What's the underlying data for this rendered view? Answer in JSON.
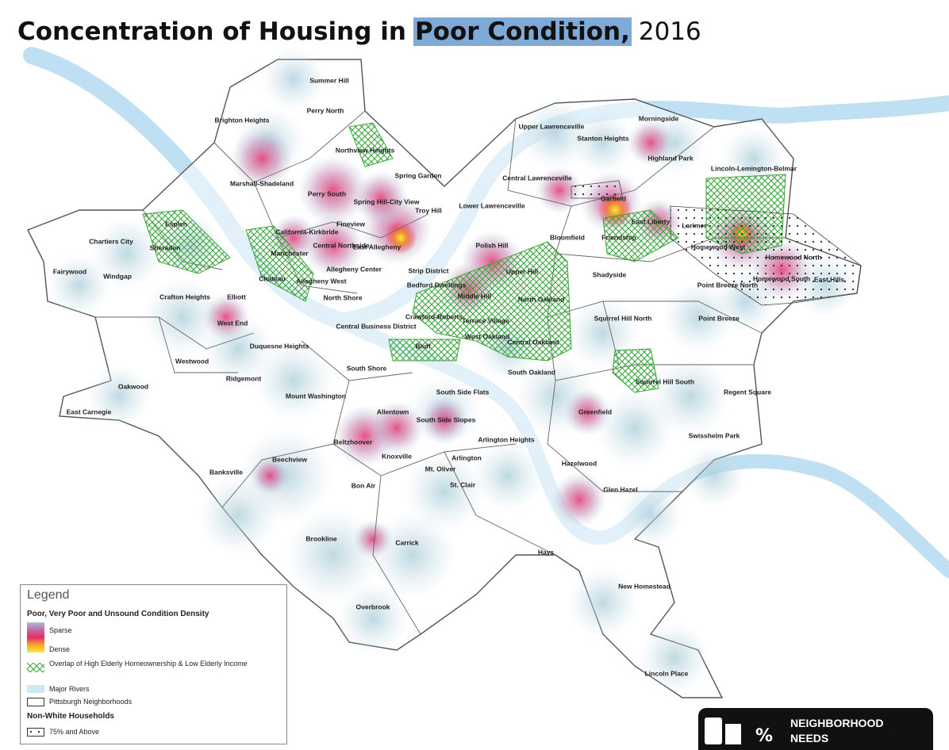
{
  "title": {
    "text": "Concentration of Housing in",
    "highlight": "Poor Condition,",
    "year": "2016"
  },
  "map": {
    "neighborhoods": [
      "Summer Hill",
      "Perry North",
      "Brighton Heights",
      "Northview Heights",
      "Spring Garden",
      "Marshall-Shadeland",
      "Perry South",
      "Spring Hill-City View",
      "Troy Hill",
      "California-Kirkbride",
      "Fineview",
      "Central Northside",
      "East Allegheny",
      "Manchester",
      "Allegheny Center",
      "Chateau",
      "Allegheny West",
      "North Shore",
      "Chartiers City",
      "Esplen",
      "Sheraden",
      "Fairywood",
      "Windgap",
      "Crafton Heights",
      "Elliott",
      "West End",
      "Duquesne Heights",
      "Westwood",
      "Ridgemont",
      "Oakwood",
      "East Carnegie",
      "Mount Washington",
      "South Shore",
      "Central Business District",
      "Strip District",
      "Bedford Dwellings",
      "Middle Hill",
      "Polish Hill",
      "Upper Hill",
      "Crawford-Roberts",
      "Terrace Village",
      "West Oakland",
      "Bluff",
      "North Oakland",
      "Central Oakland",
      "South Oakland",
      "Lower Lawrenceville",
      "Central Lawrenceville",
      "Upper Lawrenceville",
      "Stanton Heights",
      "Morningside",
      "Highland Park",
      "Lincoln-Lemington-Belmar",
      "Garfield",
      "East Liberty",
      "Bloomfield",
      "Friendship",
      "Larimer",
      "Homewood West",
      "Homewood North",
      "Homewood South",
      "East Hills",
      "Point Breeze North",
      "Shadyside",
      "Squirrel Hill North",
      "Point Breeze",
      "Squirrel Hill South",
      "Regent Square",
      "Swisshelm Park",
      "Greenfield",
      "Hazelwood",
      "Glen Hazel",
      "South Side Flats",
      "South Side Slopes",
      "Allentown",
      "Beltzhoover",
      "Knoxville",
      "Arlington Heights",
      "Arlington",
      "Mt. Oliver",
      "St. Clair",
      "Bon Air",
      "Beechview",
      "Banksville",
      "Brookline",
      "Carrick",
      "Hays",
      "Overbrook",
      "New Homestead",
      "Lincoln Place"
    ]
  },
  "legend": {
    "heading": "Legend",
    "density_title": "Poor, Very Poor and Unsound Condition Density",
    "sparse": "Sparse",
    "dense": "Dense",
    "overlap": "Overlap of High Elderly Homeownership & Low Elderly Income",
    "rivers": "Major Rivers",
    "neighborhoods": "Pittsburgh Neighborhoods",
    "nonwhite_title": "Non-White Households",
    "nonwhite": "75% and Above"
  },
  "logo": {
    "line1": "NEIGHBORHOOD",
    "line2": "NEEDS"
  }
}
